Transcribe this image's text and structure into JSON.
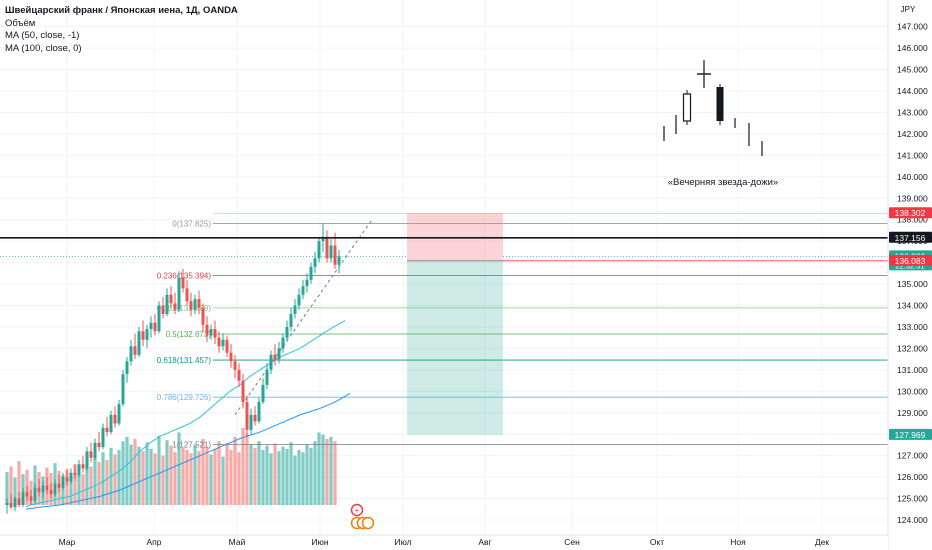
{
  "legend": {
    "title": "Швейцарский франк / Японская иена, 1Д, OANDA",
    "volume": "Объём",
    "ma50": "MA (50, close, -1)",
    "ma100": "MA (100, close, 0)"
  },
  "chart_data": {
    "type": "candlestick",
    "currency": "JPY",
    "ylim": [
      123.5,
      147.6
    ],
    "y_ticks": [
      124,
      125,
      126,
      127,
      128,
      129,
      130,
      131,
      132,
      133,
      134,
      135,
      136,
      137,
      138,
      139,
      140,
      141,
      142,
      143,
      144,
      145,
      146,
      147
    ],
    "x_labels": [
      "Мар",
      "Апр",
      "Май",
      "Июн",
      "Июл",
      "Авг",
      "Сен",
      "Окт",
      "Ноя",
      "Дек"
    ],
    "price_badges": [
      {
        "value": "138.302",
        "color": "#f23645",
        "text_color": "#ffffff"
      },
      {
        "value": "137.156",
        "color": "#131722",
        "text_color": "#ffffff"
      },
      {
        "value": "136.289",
        "color": "#26a69a",
        "text_color": "#ffffff",
        "sub": "22:32:51"
      },
      {
        "value": "136.083",
        "color": "#f23645",
        "text_color": "#ffffff"
      },
      {
        "value": "127.969",
        "color": "#26a69a",
        "text_color": "#ffffff"
      }
    ],
    "fibonacci": [
      {
        "label": "0(137.825)",
        "value": 137.825,
        "color": "#9598a1"
      },
      {
        "label": "0.236(135.394)",
        "value": 135.394,
        "color": "#f23645"
      },
      {
        "label": "0.382(133.889)",
        "value": 133.889,
        "color": "#81c784"
      },
      {
        "label": "0.5(132.673)",
        "value": 132.673,
        "color": "#4caf50"
      },
      {
        "label": "0.618(131.457)",
        "value": 131.457,
        "color": "#089981"
      },
      {
        "label": "0.786(129.726)",
        "value": 129.726,
        "color": "#64b5f6"
      },
      {
        "label": "1(127.521)",
        "value": 127.521,
        "color": "#787b86"
      }
    ],
    "horizontal_line": 137.156,
    "annotation_text": "«Вечерняя звезда-дожи»",
    "candles": [
      [
        124.7,
        125.0,
        124.3,
        124.8
      ],
      [
        124.8,
        125.2,
        124.5,
        124.6
      ],
      [
        124.6,
        125.1,
        124.4,
        125.0
      ],
      [
        125.0,
        125.3,
        124.6,
        124.7
      ],
      [
        124.7,
        125.5,
        124.6,
        125.3
      ],
      [
        125.3,
        125.6,
        124.9,
        125.1
      ],
      [
        125.1,
        125.4,
        124.7,
        124.9
      ],
      [
        124.9,
        125.7,
        124.8,
        125.5
      ],
      [
        125.5,
        125.9,
        125.1,
        125.3
      ],
      [
        125.3,
        125.8,
        125.0,
        125.6
      ],
      [
        125.6,
        126.0,
        125.2,
        125.4
      ],
      [
        125.4,
        125.7,
        125.0,
        125.2
      ],
      [
        125.2,
        125.9,
        125.1,
        125.7
      ],
      [
        125.7,
        126.1,
        125.3,
        125.5
      ],
      [
        125.5,
        126.2,
        125.4,
        126.0
      ],
      [
        126.0,
        126.3,
        125.6,
        125.8
      ],
      [
        125.8,
        126.4,
        125.7,
        126.2
      ],
      [
        126.2,
        126.6,
        125.9,
        126.1
      ],
      [
        126.1,
        126.8,
        126.0,
        126.6
      ],
      [
        126.6,
        127.0,
        126.2,
        126.4
      ],
      [
        126.4,
        127.4,
        126.3,
        127.2
      ],
      [
        127.2,
        127.6,
        126.7,
        126.9
      ],
      [
        126.9,
        127.8,
        126.8,
        127.6
      ],
      [
        127.6,
        128.1,
        127.2,
        127.4
      ],
      [
        127.4,
        128.5,
        127.3,
        128.3
      ],
      [
        128.3,
        128.8,
        127.9,
        128.1
      ],
      [
        128.1,
        129.1,
        128.0,
        128.9
      ],
      [
        128.9,
        129.3,
        128.3,
        128.5
      ],
      [
        128.5,
        129.6,
        128.4,
        129.4
      ],
      [
        129.4,
        131.0,
        129.3,
        130.8
      ],
      [
        130.8,
        131.6,
        130.4,
        131.4
      ],
      [
        131.4,
        132.4,
        131.2,
        132.1
      ],
      [
        132.1,
        132.7,
        131.5,
        131.7
      ],
      [
        131.7,
        133.0,
        131.6,
        132.8
      ],
      [
        132.8,
        133.3,
        132.1,
        132.4
      ],
      [
        132.4,
        133.1,
        132.0,
        132.9
      ],
      [
        132.9,
        133.5,
        132.5,
        133.2
      ],
      [
        133.2,
        133.6,
        132.6,
        132.8
      ],
      [
        132.8,
        134.2,
        132.7,
        134.0
      ],
      [
        134.0,
        134.4,
        133.4,
        133.6
      ],
      [
        133.6,
        134.8,
        133.5,
        134.5
      ],
      [
        134.5,
        134.9,
        133.9,
        134.1
      ],
      [
        134.1,
        134.6,
        133.6,
        133.8
      ],
      [
        133.8,
        135.6,
        133.7,
        135.3
      ],
      [
        135.3,
        135.7,
        134.6,
        134.8
      ],
      [
        134.8,
        135.2,
        134.0,
        134.2
      ],
      [
        134.2,
        134.6,
        133.5,
        133.8
      ],
      [
        133.8,
        134.5,
        133.6,
        134.3
      ],
      [
        134.3,
        134.7,
        133.6,
        133.9
      ],
      [
        133.9,
        134.1,
        132.8,
        133.1
      ],
      [
        133.1,
        133.5,
        132.3,
        132.6
      ],
      [
        132.6,
        133.1,
        132.4,
        132.9
      ],
      [
        132.9,
        133.3,
        132.2,
        132.5
      ],
      [
        132.5,
        132.8,
        131.8,
        132.1
      ],
      [
        132.1,
        132.7,
        131.9,
        132.4
      ],
      [
        132.4,
        132.6,
        131.6,
        131.8
      ],
      [
        131.8,
        132.2,
        131.1,
        131.4
      ],
      [
        131.4,
        131.7,
        130.6,
        131.0
      ],
      [
        131.0,
        131.3,
        130.2,
        130.5
      ],
      [
        130.5,
        130.8,
        129.2,
        129.5
      ],
      [
        129.5,
        129.8,
        127.9,
        128.2
      ],
      [
        128.2,
        129.2,
        128.0,
        128.9
      ],
      [
        128.9,
        129.3,
        128.4,
        128.6
      ],
      [
        128.6,
        129.7,
        128.5,
        129.5
      ],
      [
        129.5,
        130.6,
        129.4,
        130.3
      ],
      [
        130.3,
        131.3,
        130.1,
        131.0
      ],
      [
        131.0,
        131.9,
        130.8,
        131.7
      ],
      [
        131.7,
        132.2,
        131.2,
        131.5
      ],
      [
        131.5,
        132.3,
        131.3,
        132.0
      ],
      [
        132.0,
        132.7,
        131.8,
        132.5
      ],
      [
        132.5,
        133.3,
        132.3,
        133.0
      ],
      [
        133.0,
        133.9,
        132.8,
        133.6
      ],
      [
        133.6,
        134.3,
        133.4,
        134.0
      ],
      [
        134.0,
        134.8,
        133.8,
        134.5
      ],
      [
        134.5,
        135.2,
        134.3,
        134.9
      ],
      [
        134.9,
        135.5,
        134.6,
        135.2
      ],
      [
        135.2,
        136.0,
        135.0,
        135.8
      ],
      [
        135.8,
        136.5,
        135.5,
        136.2
      ],
      [
        136.2,
        137.2,
        136.0,
        137.0
      ],
      [
        137.0,
        137.82,
        136.5,
        137.2
      ],
      [
        137.2,
        137.5,
        136.0,
        136.2
      ],
      [
        136.2,
        137.1,
        136.0,
        136.8
      ],
      [
        136.8,
        137.4,
        135.7,
        135.9
      ],
      [
        135.9,
        136.6,
        135.5,
        136.3
      ]
    ],
    "volume_scale": 100,
    "volumes": [
      30,
      35,
      25,
      40,
      28,
      32,
      22,
      36,
      30,
      26,
      34,
      29,
      38,
      31,
      27,
      33,
      24,
      37,
      30,
      28,
      42,
      35,
      44,
      39,
      48,
      41,
      52,
      46,
      50,
      58,
      62,
      55,
      60,
      53,
      49,
      57,
      51,
      47,
      63,
      45,
      59,
      54,
      48,
      66,
      52,
      50,
      47,
      55,
      49,
      60,
      53,
      46,
      51,
      58,
      44,
      56,
      50,
      62,
      48,
      70,
      65,
      55,
      52,
      58,
      50,
      54,
      47,
      56,
      49,
      53,
      51,
      57,
      45,
      50,
      48,
      55,
      52,
      58,
      66,
      64,
      60,
      62,
      58,
      0
    ],
    "ma50": [
      [
        26,
        124.6
      ],
      [
        30,
        124.7
      ],
      [
        40,
        124.8
      ],
      [
        50,
        124.9
      ],
      [
        60,
        125.0
      ],
      [
        70,
        125.1
      ],
      [
        80,
        125.3
      ],
      [
        90,
        125.5
      ],
      [
        100,
        125.7
      ],
      [
        110,
        126.0
      ],
      [
        120,
        126.3
      ],
      [
        130,
        126.7
      ],
      [
        140,
        127.2
      ],
      [
        150,
        127.6
      ],
      [
        160,
        127.9
      ],
      [
        170,
        128.1
      ],
      [
        180,
        128.3
      ],
      [
        190,
        128.5
      ],
      [
        200,
        128.8
      ],
      [
        210,
        129.2
      ],
      [
        220,
        129.6
      ],
      [
        230,
        130.0
      ],
      [
        240,
        130.3
      ],
      [
        250,
        130.7
      ],
      [
        260,
        131.0
      ],
      [
        270,
        131.3
      ],
      [
        280,
        131.6
      ],
      [
        290,
        131.8
      ],
      [
        300,
        132.0
      ],
      [
        310,
        132.3
      ],
      [
        320,
        132.6
      ],
      [
        330,
        132.9
      ],
      [
        345,
        133.3
      ]
    ],
    "ma100": [
      [
        26,
        124.5
      ],
      [
        40,
        124.6
      ],
      [
        60,
        124.7
      ],
      [
        80,
        124.9
      ],
      [
        100,
        125.1
      ],
      [
        120,
        125.4
      ],
      [
        140,
        125.8
      ],
      [
        160,
        126.2
      ],
      [
        180,
        126.6
      ],
      [
        200,
        127.0
      ],
      [
        220,
        127.4
      ],
      [
        240,
        127.8
      ],
      [
        260,
        128.1
      ],
      [
        280,
        128.5
      ],
      [
        300,
        128.9
      ],
      [
        320,
        129.2
      ],
      [
        335,
        129.5
      ],
      [
        350,
        129.9
      ]
    ],
    "trend_line": [
      [
        235,
        128.9
      ],
      [
        372,
        138.0
      ]
    ],
    "position": {
      "stop_top": 138.302,
      "entry": 136.083,
      "target": 127.969
    }
  }
}
